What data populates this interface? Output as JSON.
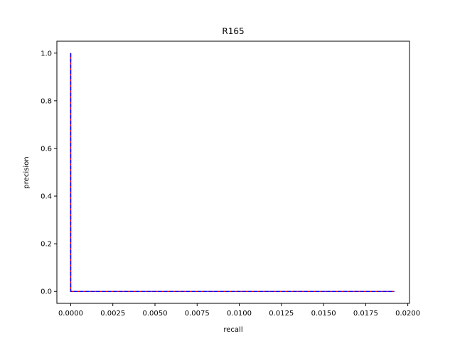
{
  "chart_data": {
    "type": "line",
    "title": "R165",
    "xlabel": "recall",
    "ylabel": "precision",
    "xlim": [
      -0.00082,
      0.0201
    ],
    "ylim": [
      -0.05,
      1.05
    ],
    "x_ticks": [
      0.0,
      0.0025,
      0.005,
      0.0075,
      0.01,
      0.0125,
      0.015,
      0.0175,
      0.02
    ],
    "x_tick_labels": [
      "0.0000",
      "0.0025",
      "0.0050",
      "0.0075",
      "0.0100",
      "0.0125",
      "0.0150",
      "0.0175",
      "0.0200"
    ],
    "y_ticks": [
      0.0,
      0.2,
      0.4,
      0.6,
      0.8,
      1.0
    ],
    "y_tick_labels": [
      "0.0",
      "0.2",
      "0.4",
      "0.6",
      "0.8",
      "1.0"
    ],
    "grid": false,
    "legend": "none",
    "series": [
      {
        "color": "#ff0000",
        "style": "solid",
        "x": [
          0.0,
          0.0,
          0.0192
        ],
        "y": [
          1.0,
          0.0,
          0.0
        ]
      },
      {
        "color": "#0000ff",
        "style": "dashed",
        "x": [
          0.0,
          0.0,
          0.0192
        ],
        "y": [
          1.0,
          0.0,
          0.0
        ]
      }
    ]
  }
}
